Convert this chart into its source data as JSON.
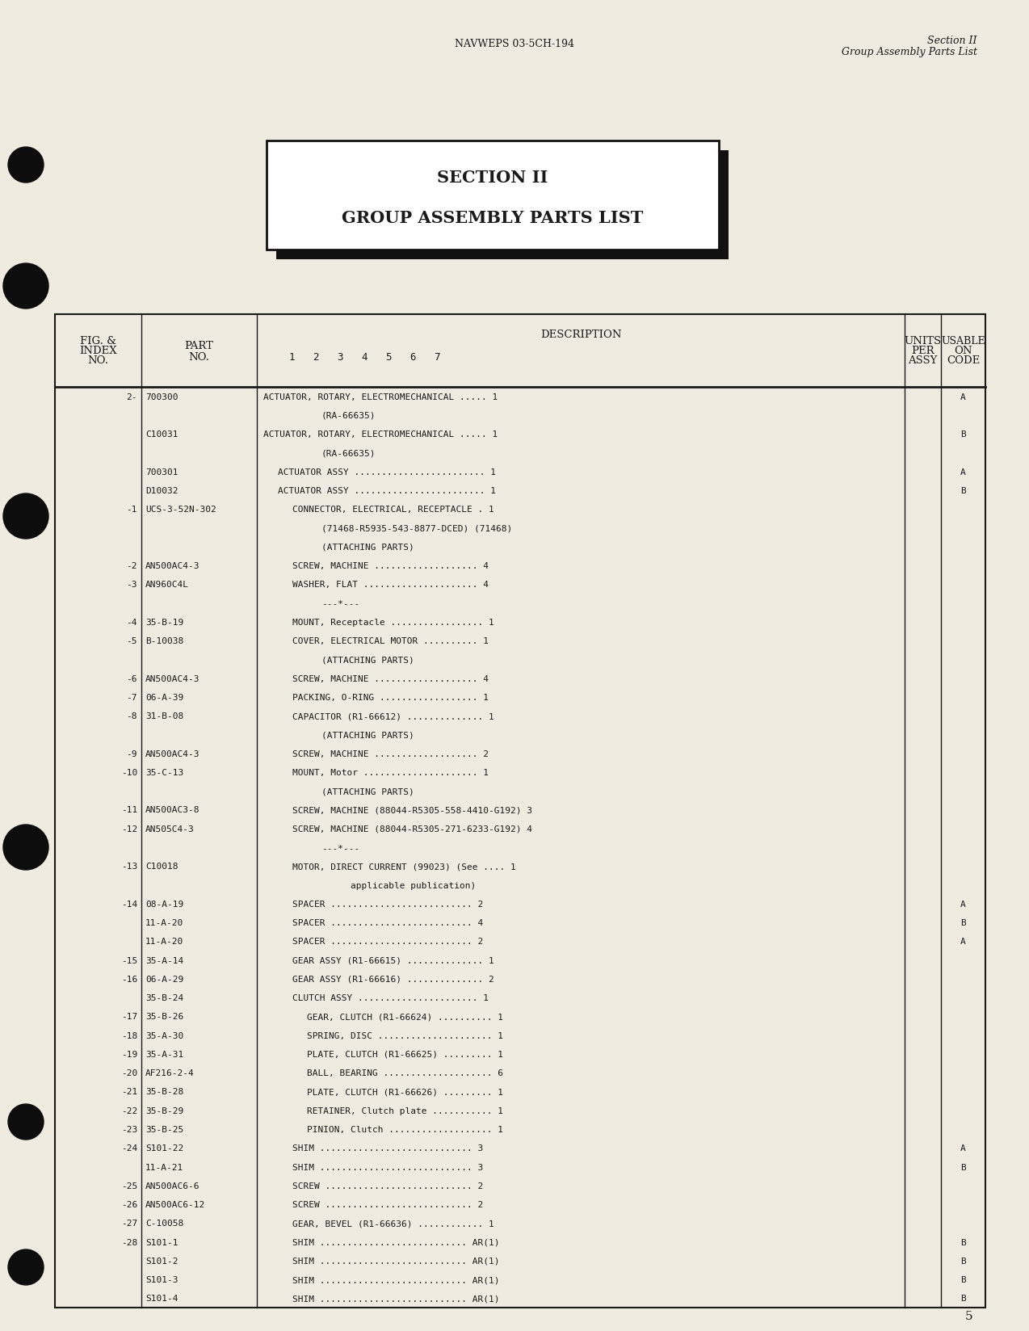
{
  "bg_color": "#f0ebe0",
  "page_number": "5",
  "header_center": "NAVWEPS 03-5CH-194",
  "header_right_line1": "Section II",
  "header_right_line2": "Group Assembly Parts List",
  "section_title_line1": "SECTION II",
  "section_title_line2": "GROUP ASSEMBLY PARTS LIST",
  "rows": [
    {
      "fig": "2-",
      "part": "700300",
      "indent": 0,
      "desc": "ACTUATOR, ROTARY, ELECTROMECHANICAL ..... 1",
      "code": "A"
    },
    {
      "fig": "",
      "part": "",
      "indent": 4,
      "desc": "(RA-66635)",
      "code": ""
    },
    {
      "fig": "",
      "part": "C10031",
      "indent": 0,
      "desc": "ACTUATOR, ROTARY, ELECTROMECHANICAL ..... 1",
      "code": "B"
    },
    {
      "fig": "",
      "part": "",
      "indent": 4,
      "desc": "(RA-66635)",
      "code": ""
    },
    {
      "fig": "",
      "part": "700301",
      "indent": 1,
      "desc": "ACTUATOR ASSY ........................ 1",
      "code": "A"
    },
    {
      "fig": "",
      "part": "D10032",
      "indent": 1,
      "desc": "ACTUATOR ASSY ........................ 1",
      "code": "B"
    },
    {
      "fig": "-1",
      "part": "UCS-3-52N-302",
      "indent": 2,
      "desc": "CONNECTOR, ELECTRICAL, RECEPTACLE . 1",
      "code": ""
    },
    {
      "fig": "",
      "part": "",
      "indent": 4,
      "desc": "(71468-R5935-543-8877-DCED) (71468)",
      "code": ""
    },
    {
      "fig": "",
      "part": "",
      "indent": 4,
      "desc": "(ATTACHING PARTS)",
      "code": ""
    },
    {
      "fig": "-2",
      "part": "AN500AC4-3",
      "indent": 2,
      "desc": "SCREW, MACHINE ................... 4",
      "code": ""
    },
    {
      "fig": "-3",
      "part": "AN960C4L",
      "indent": 2,
      "desc": "WASHER, FLAT ..................... 4",
      "code": ""
    },
    {
      "fig": "",
      "part": "",
      "indent": 4,
      "desc": "---*---",
      "code": ""
    },
    {
      "fig": "-4",
      "part": "35-B-19",
      "indent": 2,
      "desc": "MOUNT, Receptacle ................. 1",
      "code": ""
    },
    {
      "fig": "-5",
      "part": "B-10038",
      "indent": 2,
      "desc": "COVER, ELECTRICAL MOTOR .......... 1",
      "code": ""
    },
    {
      "fig": "",
      "part": "",
      "indent": 4,
      "desc": "(ATTACHING PARTS)",
      "code": ""
    },
    {
      "fig": "-6",
      "part": "AN500AC4-3",
      "indent": 2,
      "desc": "SCREW, MACHINE ................... 4",
      "code": ""
    },
    {
      "fig": "-7",
      "part": "06-A-39",
      "indent": 2,
      "desc": "PACKING, O-RING .................. 1",
      "code": ""
    },
    {
      "fig": "-8",
      "part": "31-B-08",
      "indent": 2,
      "desc": "CAPACITOR (R1-66612) .............. 1",
      "code": ""
    },
    {
      "fig": "",
      "part": "",
      "indent": 4,
      "desc": "(ATTACHING PARTS)",
      "code": ""
    },
    {
      "fig": "-9",
      "part": "AN500AC4-3",
      "indent": 2,
      "desc": "SCREW, MACHINE ................... 2",
      "code": ""
    },
    {
      "fig": "-10",
      "part": "35-C-13",
      "indent": 2,
      "desc": "MOUNT, Motor ..................... 1",
      "code": ""
    },
    {
      "fig": "",
      "part": "",
      "indent": 4,
      "desc": "(ATTACHING PARTS)",
      "code": ""
    },
    {
      "fig": "-11",
      "part": "AN500AC3-8",
      "indent": 2,
      "desc": "SCREW, MACHINE (88044-R5305-558-4410-G192) 3",
      "code": ""
    },
    {
      "fig": "-12",
      "part": "AN505C4-3",
      "indent": 2,
      "desc": "SCREW, MACHINE (88044-R5305-271-6233-G192) 4",
      "code": ""
    },
    {
      "fig": "",
      "part": "",
      "indent": 4,
      "desc": "---*---",
      "code": ""
    },
    {
      "fig": "-13",
      "part": "C10018",
      "indent": 2,
      "desc": "MOTOR, DIRECT CURRENT (99023) (See .... 1",
      "code": ""
    },
    {
      "fig": "",
      "part": "",
      "indent": 6,
      "desc": "applicable publication)",
      "code": ""
    },
    {
      "fig": "-14",
      "part": "08-A-19",
      "indent": 2,
      "desc": "SPACER .......................... 2",
      "code": "A"
    },
    {
      "fig": "",
      "part": "11-A-20",
      "indent": 2,
      "desc": "SPACER .......................... 4",
      "code": "B"
    },
    {
      "fig": "",
      "part": "11-A-20",
      "indent": 2,
      "desc": "SPACER .......................... 2",
      "code": "A"
    },
    {
      "fig": "-15",
      "part": "35-A-14",
      "indent": 2,
      "desc": "GEAR ASSY (R1-66615) .............. 1",
      "code": ""
    },
    {
      "fig": "-16",
      "part": "06-A-29",
      "indent": 2,
      "desc": "GEAR ASSY (R1-66616) .............. 2",
      "code": ""
    },
    {
      "fig": "",
      "part": "35-B-24",
      "indent": 2,
      "desc": "CLUTCH ASSY ...................... 1",
      "code": ""
    },
    {
      "fig": "-17",
      "part": "35-B-26",
      "indent": 3,
      "desc": "GEAR, CLUTCH (R1-66624) .......... 1",
      "code": ""
    },
    {
      "fig": "-18",
      "part": "35-A-30",
      "indent": 3,
      "desc": "SPRING, DISC ..................... 1",
      "code": ""
    },
    {
      "fig": "-19",
      "part": "35-A-31",
      "indent": 3,
      "desc": "PLATE, CLUTCH (R1-66625) ......... 1",
      "code": ""
    },
    {
      "fig": "-20",
      "part": "AF216-2-4",
      "indent": 3,
      "desc": "BALL, BEARING .................... 6",
      "code": ""
    },
    {
      "fig": "-21",
      "part": "35-B-28",
      "indent": 3,
      "desc": "PLATE, CLUTCH (R1-66626) ......... 1",
      "code": ""
    },
    {
      "fig": "-22",
      "part": "35-B-29",
      "indent": 3,
      "desc": "RETAINER, Clutch plate ........... 1",
      "code": ""
    },
    {
      "fig": "-23",
      "part": "35-B-25",
      "indent": 3,
      "desc": "PINION, Clutch ................... 1",
      "code": ""
    },
    {
      "fig": "-24",
      "part": "S101-22",
      "indent": 2,
      "desc": "SHIM ............................ 3",
      "code": "A"
    },
    {
      "fig": "",
      "part": "11-A-21",
      "indent": 2,
      "desc": "SHIM ............................ 3",
      "code": "B"
    },
    {
      "fig": "-25",
      "part": "AN500AC6-6",
      "indent": 2,
      "desc": "SCREW ........................... 2",
      "code": ""
    },
    {
      "fig": "-26",
      "part": "AN500AC6-12",
      "indent": 2,
      "desc": "SCREW ........................... 2",
      "code": ""
    },
    {
      "fig": "-27",
      "part": "C-10058",
      "indent": 2,
      "desc": "GEAR, BEVEL (R1-66636) ............ 1",
      "code": ""
    },
    {
      "fig": "-28",
      "part": "S101-1",
      "indent": 2,
      "desc": "SHIM ........................... AR(1)",
      "code": "B"
    },
    {
      "fig": "",
      "part": "S101-2",
      "indent": 2,
      "desc": "SHIM ........................... AR(1)",
      "code": "B"
    },
    {
      "fig": "",
      "part": "S101-3",
      "indent": 2,
      "desc": "SHIM ........................... AR(1)",
      "code": "B"
    },
    {
      "fig": "",
      "part": "S101-4",
      "indent": 2,
      "desc": "SHIM ........................... AR(1)",
      "code": "B"
    }
  ]
}
